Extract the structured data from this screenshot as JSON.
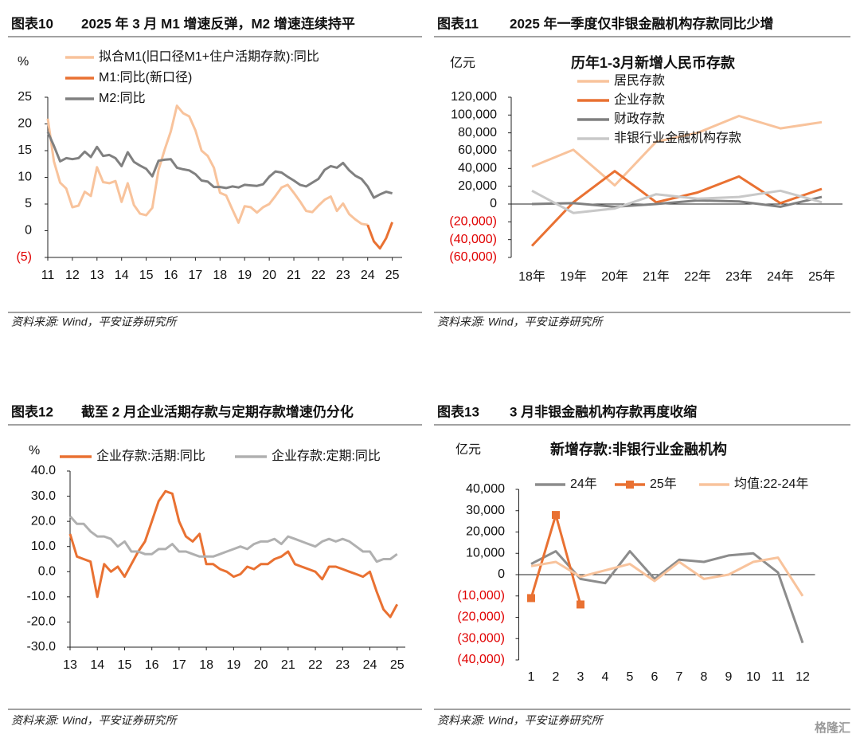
{
  "chart_data": [
    {
      "type": "line",
      "figure_label": "图表10",
      "heading": "2025 年 3 月 M1 增速反弹，M2 增速连续持平",
      "y_unit": "%",
      "source": "资料来源: Wind，平安证券研究所",
      "x": [
        11,
        11.25,
        11.5,
        11.75,
        12,
        12.25,
        12.5,
        12.75,
        13,
        13.25,
        13.5,
        13.75,
        14,
        14.25,
        14.5,
        14.75,
        15,
        15.25,
        15.5,
        15.75,
        16,
        16.25,
        16.5,
        16.75,
        17,
        17.25,
        17.5,
        17.75,
        18,
        18.25,
        18.5,
        18.75,
        19,
        19.25,
        19.5,
        19.75,
        20,
        20.25,
        20.5,
        20.75,
        21,
        21.25,
        21.5,
        21.75,
        22,
        22.25,
        22.5,
        22.75,
        23,
        23.25,
        23.5,
        23.75,
        24,
        24.25,
        24.5,
        24.75,
        25
      ],
      "xlim": [
        11,
        25.4
      ],
      "xticks": [
        11,
        12,
        13,
        14,
        15,
        16,
        17,
        18,
        19,
        20,
        21,
        22,
        23,
        24,
        25
      ],
      "ylim": [
        -5,
        25
      ],
      "yticks": [
        {
          "value": -5,
          "label": "(5)"
        },
        0,
        5,
        10,
        15,
        20,
        25
      ],
      "negative_tick_color": "#e00000",
      "legend": "top-left",
      "series": [
        {
          "name": "拟合M1(旧口径M1+住户活期存款):同比",
          "color": "#f8c39c",
          "values": [
            21.0,
            13.0,
            9.0,
            7.9,
            4.4,
            4.7,
            7.3,
            6.5,
            11.9,
            9.1,
            8.9,
            9.3,
            5.4,
            8.9,
            4.8,
            3.2,
            2.9,
            4.3,
            11.4,
            15.2,
            18.6,
            23.4,
            22.0,
            21.4,
            18.8,
            15.0,
            14.0,
            11.8,
            7.1,
            6.6,
            4.0,
            1.5,
            4.6,
            4.4,
            3.4,
            4.4,
            5.0,
            6.5,
            8.1,
            8.6,
            7.1,
            5.5,
            3.7,
            3.5,
            4.7,
            5.8,
            6.4,
            3.7,
            5.1,
            3.1,
            2.1,
            1.3,
            1.1,
            null,
            null,
            null,
            null
          ]
        },
        {
          "name": "M1:同比(新口径)",
          "color": "#e97132",
          "values": [
            null,
            null,
            null,
            null,
            null,
            null,
            null,
            null,
            null,
            null,
            null,
            null,
            null,
            null,
            null,
            null,
            null,
            null,
            null,
            null,
            null,
            null,
            null,
            null,
            null,
            null,
            null,
            null,
            null,
            null,
            null,
            null,
            null,
            null,
            null,
            null,
            null,
            null,
            null,
            null,
            null,
            null,
            null,
            null,
            null,
            null,
            null,
            null,
            null,
            null,
            null,
            null,
            1.1,
            -2.0,
            -3.3,
            -1.4,
            1.6
          ]
        },
        {
          "name": "M2:同比",
          "color": "#808080",
          "values": [
            18.5,
            15.9,
            13.0,
            13.6,
            13.4,
            13.6,
            14.8,
            13.8,
            15.7,
            14.0,
            14.2,
            13.6,
            12.1,
            14.7,
            12.9,
            12.2,
            11.6,
            10.2,
            13.1,
            13.3,
            13.4,
            11.8,
            11.5,
            11.3,
            10.6,
            9.4,
            9.2,
            8.2,
            8.2,
            8.0,
            8.3,
            8.1,
            8.6,
            8.5,
            8.4,
            8.7,
            10.1,
            11.1,
            10.9,
            10.1,
            9.4,
            8.6,
            8.3,
            9.0,
            9.7,
            11.4,
            12.1,
            11.8,
            12.7,
            11.3,
            10.3,
            9.7,
            8.3,
            6.2,
            6.8,
            7.3,
            7.0
          ]
        }
      ]
    },
    {
      "type": "line",
      "figure_label": "图表11",
      "heading": "2025 年一季度仅非银金融机构存款同比少增",
      "title": "历年1-3月新增人民币存款",
      "y_unit": "亿元",
      "source": "资料来源: Wind，平安证券研究所",
      "categories": [
        "18年",
        "19年",
        "20年",
        "21年",
        "22年",
        "23年",
        "24年",
        "25年"
      ],
      "ylim": [
        -60000,
        120000
      ],
      "yticks": [
        {
          "value": -60000,
          "label": "(60,000)"
        },
        {
          "value": -40000,
          "label": "(40,000)"
        },
        {
          "value": -20000,
          "label": "(20,000)"
        },
        0,
        {
          "value": 20000,
          "label": "20,000"
        },
        {
          "value": 40000,
          "label": "40,000"
        },
        {
          "value": 60000,
          "label": "60,000"
        },
        {
          "value": 80000,
          "label": "80,000"
        },
        {
          "value": 100000,
          "label": "100,000"
        },
        {
          "value": 120000,
          "label": "120,000"
        }
      ],
      "negative_tick_color": "#e00000",
      "legend": "top",
      "series": [
        {
          "name": "居民存款",
          "color": "#f8c39c",
          "values": [
            42000,
            61000,
            21000,
            70000,
            80000,
            99000,
            85000,
            92000
          ]
        },
        {
          "name": "企业存款",
          "color": "#e97132",
          "values": [
            -47000,
            2000,
            37000,
            2000,
            13000,
            31000,
            1000,
            17000
          ]
        },
        {
          "name": "财政存款",
          "color": "#808080",
          "values": [
            0,
            1000,
            -3000,
            0,
            4000,
            3000,
            -3000,
            8000
          ]
        },
        {
          "name": "非银行业金融机构存款",
          "color": "#c8c8c8",
          "values": [
            15000,
            -10000,
            -5000,
            11000,
            6000,
            8000,
            15000,
            2000
          ]
        }
      ]
    },
    {
      "type": "line",
      "figure_label": "图表12",
      "heading": "截至 2 月企业活期存款与定期存款增速仍分化",
      "y_unit": "%",
      "source": "资料来源: Wind，平安证券研究所",
      "x": [
        13,
        13.25,
        13.5,
        13.75,
        14,
        14.25,
        14.5,
        14.75,
        15,
        15.25,
        15.5,
        15.75,
        16,
        16.25,
        16.5,
        16.75,
        17,
        17.25,
        17.5,
        17.75,
        18,
        18.25,
        18.5,
        18.75,
        19,
        19.25,
        19.5,
        19.75,
        20,
        20.25,
        20.5,
        20.75,
        21,
        21.25,
        21.5,
        21.75,
        22,
        22.25,
        22.5,
        22.75,
        23,
        23.25,
        23.5,
        23.75,
        24,
        24.25,
        24.5,
        24.75,
        25
      ],
      "xlim": [
        13,
        25.3
      ],
      "xticks": [
        13,
        14,
        15,
        16,
        17,
        18,
        19,
        20,
        21,
        22,
        23,
        24,
        25
      ],
      "ylim": [
        -30,
        40
      ],
      "yticks": [
        {
          "value": -30,
          "label": "-30.0"
        },
        {
          "value": -20,
          "label": "-20.0"
        },
        {
          "value": -10,
          "label": "-10.0"
        },
        {
          "value": 0,
          "label": "0.0"
        },
        {
          "value": 10,
          "label": "10.0"
        },
        {
          "value": 20,
          "label": "20.0"
        },
        {
          "value": 30,
          "label": "30.0"
        },
        {
          "value": 40,
          "label": "40.0"
        }
      ],
      "legend": "top",
      "series": [
        {
          "name": "企业存款:活期:同比",
          "color": "#e97132",
          "values": [
            15,
            6,
            5,
            4,
            -10,
            3,
            0,
            2,
            -2,
            3,
            8,
            12,
            20,
            28,
            32,
            31,
            20,
            14,
            12,
            15,
            3,
            3,
            1,
            0,
            -2,
            -1,
            2,
            1,
            3,
            3,
            5,
            6,
            8,
            3,
            2,
            1,
            0,
            -3,
            2,
            2,
            1,
            0,
            -1,
            -2,
            0,
            -8,
            -15,
            -18,
            -13
          ]
        },
        {
          "name": "企业存款:定期:同比",
          "color": "#b0b0b0",
          "values": [
            22,
            19,
            19,
            16,
            14,
            14,
            13,
            10,
            12,
            8,
            8,
            7,
            7,
            9,
            9,
            11,
            8,
            8,
            7,
            6,
            6,
            6,
            7,
            8,
            9,
            10,
            9,
            11,
            12,
            12,
            13,
            11,
            14,
            13,
            12,
            11,
            10,
            12,
            13,
            12,
            13,
            12,
            10,
            8,
            8,
            4,
            5,
            5,
            7
          ]
        }
      ]
    },
    {
      "type": "line",
      "figure_label": "图表13",
      "heading": "3 月非银金融机构存款再度收缩",
      "title": "新增存款:非银行业金融机构",
      "y_unit": "亿元",
      "source": "资料来源: Wind，平安证券研究所",
      "watermark": "格隆汇",
      "categories": [
        "1",
        "2",
        "3",
        "4",
        "5",
        "6",
        "7",
        "8",
        "9",
        "10",
        "11",
        "12"
      ],
      "ylim": [
        -40000,
        40000
      ],
      "yticks": [
        {
          "value": -40000,
          "label": "(40,000)"
        },
        {
          "value": -30000,
          "label": "(30,000)"
        },
        {
          "value": -20000,
          "label": "(20,000)"
        },
        {
          "value": -10000,
          "label": "(10,000)"
        },
        0,
        {
          "value": 10000,
          "label": "10,000"
        },
        {
          "value": 20000,
          "label": "20,000"
        },
        {
          "value": 30000,
          "label": "30,000"
        },
        {
          "value": 40000,
          "label": "40,000"
        }
      ],
      "negative_tick_color": "#e00000",
      "legend": "top",
      "series": [
        {
          "name": "24年",
          "color": "#8c8c8c",
          "values": [
            5000,
            11000,
            -2000,
            -4000,
            11000,
            -2000,
            7000,
            6000,
            9000,
            10000,
            1000,
            -32000
          ]
        },
        {
          "name": "25年",
          "color": "#e97132",
          "marker": "square",
          "values": [
            -11000,
            28000,
            -14000,
            null,
            null,
            null,
            null,
            null,
            null,
            null,
            null,
            null
          ]
        },
        {
          "name": "均值:22-24年",
          "color": "#f8c39c",
          "values": [
            4000,
            6000,
            -1000,
            2000,
            5000,
            -3000,
            6000,
            -2000,
            0,
            6000,
            8000,
            -10000
          ]
        }
      ]
    }
  ]
}
